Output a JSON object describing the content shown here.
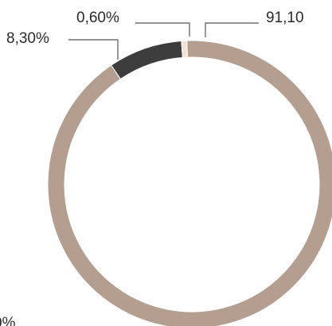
{
  "chart_data": {
    "type": "pie",
    "title": "",
    "donut": true,
    "start_angle_deg": -2,
    "slices": [
      {
        "label": "91,10",
        "value": 91.1,
        "color": "#b49e90"
      },
      {
        "label": "8,30%",
        "value": 8.3,
        "color": "#3d3d3d"
      },
      {
        "label": "0,60%",
        "value": 0.6,
        "color": "#f2e2d2"
      }
    ],
    "edge_label_fragment": "0%"
  }
}
